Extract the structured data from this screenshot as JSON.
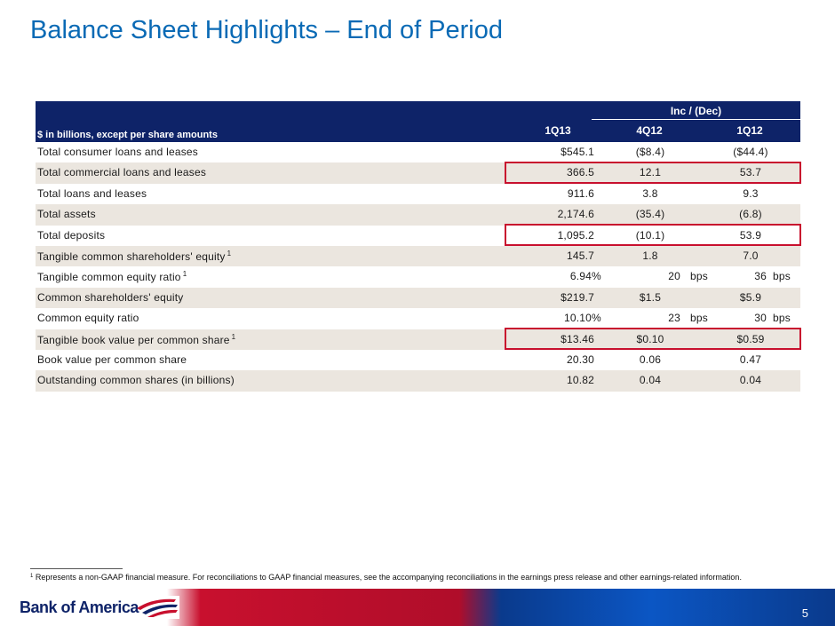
{
  "title": "Balance Sheet Highlights – End of Period",
  "header": {
    "units_label": "$ in billions, except per share amounts",
    "inc_dec_label": "Inc / (Dec)",
    "col1": "1Q13",
    "col2": "4Q12",
    "col3": "1Q12"
  },
  "rows": [
    {
      "label": "Total consumer loans and leases",
      "sup": "",
      "v1": "$545.1",
      "v2": "($8.4)",
      "v3": "($44.4)"
    },
    {
      "label": "Total commercial loans and leases",
      "sup": "",
      "v1": "366.5",
      "v2": "12.1",
      "v3": "53.7"
    },
    {
      "label": "Total loans and leases",
      "sup": "",
      "v1": "911.6",
      "v2": "3.8",
      "v3": "9.3"
    },
    {
      "label": "Total assets",
      "sup": "",
      "v1": "2,174.6",
      "v2": "(35.4)",
      "v3": "(6.8)"
    },
    {
      "label": "Total deposits",
      "sup": "",
      "v1": "1,095.2",
      "v2": "(10.1)",
      "v3": "53.9"
    },
    {
      "label": "Tangible common shareholders' equity",
      "sup": "1",
      "v1": "145.7",
      "v2": "1.8",
      "v3": "7.0"
    },
    {
      "label": "Tangible common equity ratio",
      "sup": "1",
      "v1": "6.94",
      "u1": "%",
      "v2": "20",
      "u2": "bps",
      "v3": "36",
      "u3": "bps"
    },
    {
      "label": "Common shareholders' equity",
      "sup": "",
      "v1": "$219.7",
      "v2": "$1.5",
      "v3": "$5.9"
    },
    {
      "label": "Common equity ratio",
      "sup": "",
      "v1": "10.10",
      "u1": "%",
      "v2": "23",
      "u2": "bps",
      "v3": "30",
      "u3": "bps"
    },
    {
      "label": "Tangible book value per common share",
      "sup": "1",
      "v1": "$13.46",
      "v2": "$0.10",
      "v3": "$0.59"
    },
    {
      "label": "Book value per common share",
      "sup": "",
      "v1": "20.30",
      "v2": "0.06",
      "v3": "0.47"
    },
    {
      "label": "Outstanding common shares (in billions)",
      "sup": "",
      "v1": "10.82",
      "v2": "0.04",
      "v3": "0.04"
    }
  ],
  "footnote": {
    "sup": "1",
    "text": " Represents a non-GAAP financial measure. For reconciliations to GAAP financial measures, see the accompanying reconciliations in the earnings press release and other earnings-related information."
  },
  "logo_text": "Bank of America",
  "page_number": "5",
  "colors": {
    "title": "#0a6ab5",
    "header_bg": "#0e2368",
    "row_shade": "#ebe6df",
    "highlight": "#c8102e"
  }
}
